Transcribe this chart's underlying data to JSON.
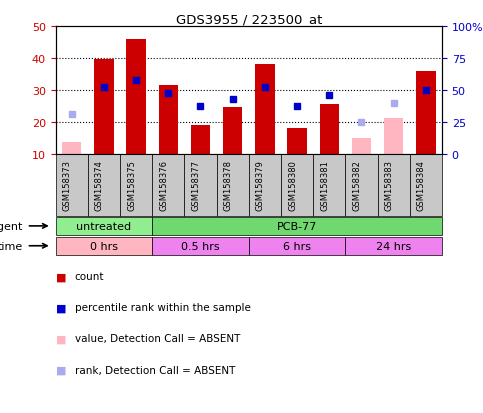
{
  "title": "GDS3955 / 223500_at",
  "samples": [
    "GSM158373",
    "GSM158374",
    "GSM158375",
    "GSM158376",
    "GSM158377",
    "GSM158378",
    "GSM158379",
    "GSM158380",
    "GSM158381",
    "GSM158382",
    "GSM158383",
    "GSM158384"
  ],
  "count_values": [
    null,
    39.5,
    46.0,
    31.5,
    19.0,
    24.5,
    38.0,
    18.0,
    25.5,
    null,
    null,
    36.0
  ],
  "count_absent": [
    13.5,
    null,
    null,
    null,
    null,
    null,
    null,
    null,
    null,
    15.0,
    21.0,
    null
  ],
  "rank_values": [
    null,
    31.0,
    33.0,
    29.0,
    25.0,
    27.0,
    31.0,
    25.0,
    28.5,
    null,
    null,
    30.0
  ],
  "rank_absent": [
    22.5,
    null,
    null,
    null,
    null,
    null,
    null,
    null,
    null,
    20.0,
    26.0,
    null
  ],
  "agent_groups": [
    {
      "label": "untreated",
      "start": 0,
      "end": 3,
      "color": "#90EE90"
    },
    {
      "label": "PCB-77",
      "start": 3,
      "end": 12,
      "color": "#6FD96F"
    }
  ],
  "time_groups": [
    {
      "label": "0 hrs",
      "start": 0,
      "end": 3,
      "color": "#FFB6C1"
    },
    {
      "label": "0.5 hrs",
      "start": 3,
      "end": 6,
      "color": "#EE82EE"
    },
    {
      "label": "6 hrs",
      "start": 6,
      "end": 9,
      "color": "#EE82EE"
    },
    {
      "label": "24 hrs",
      "start": 9,
      "end": 12,
      "color": "#EE82EE"
    }
  ],
  "ylim_left": [
    10,
    50
  ],
  "ylim_right": [
    0,
    100
  ],
  "yticks_left": [
    10,
    20,
    30,
    40,
    50
  ],
  "yticks_right": [
    0,
    25,
    50,
    75,
    100
  ],
  "yticklabels_right": [
    "0",
    "25",
    "50",
    "75",
    "100%"
  ],
  "bar_color_red": "#CC0000",
  "bar_color_pink": "#FFB6C1",
  "dot_color_blue": "#0000CC",
  "dot_color_lightblue": "#AAAAEE",
  "sample_box_color": "#C8C8C8",
  "legend_items": [
    {
      "color": "#CC0000",
      "label": "count"
    },
    {
      "color": "#0000CC",
      "label": "percentile rank within the sample"
    },
    {
      "color": "#FFB6C1",
      "label": "value, Detection Call = ABSENT"
    },
    {
      "color": "#AAAAEE",
      "label": "rank, Detection Call = ABSENT"
    }
  ]
}
